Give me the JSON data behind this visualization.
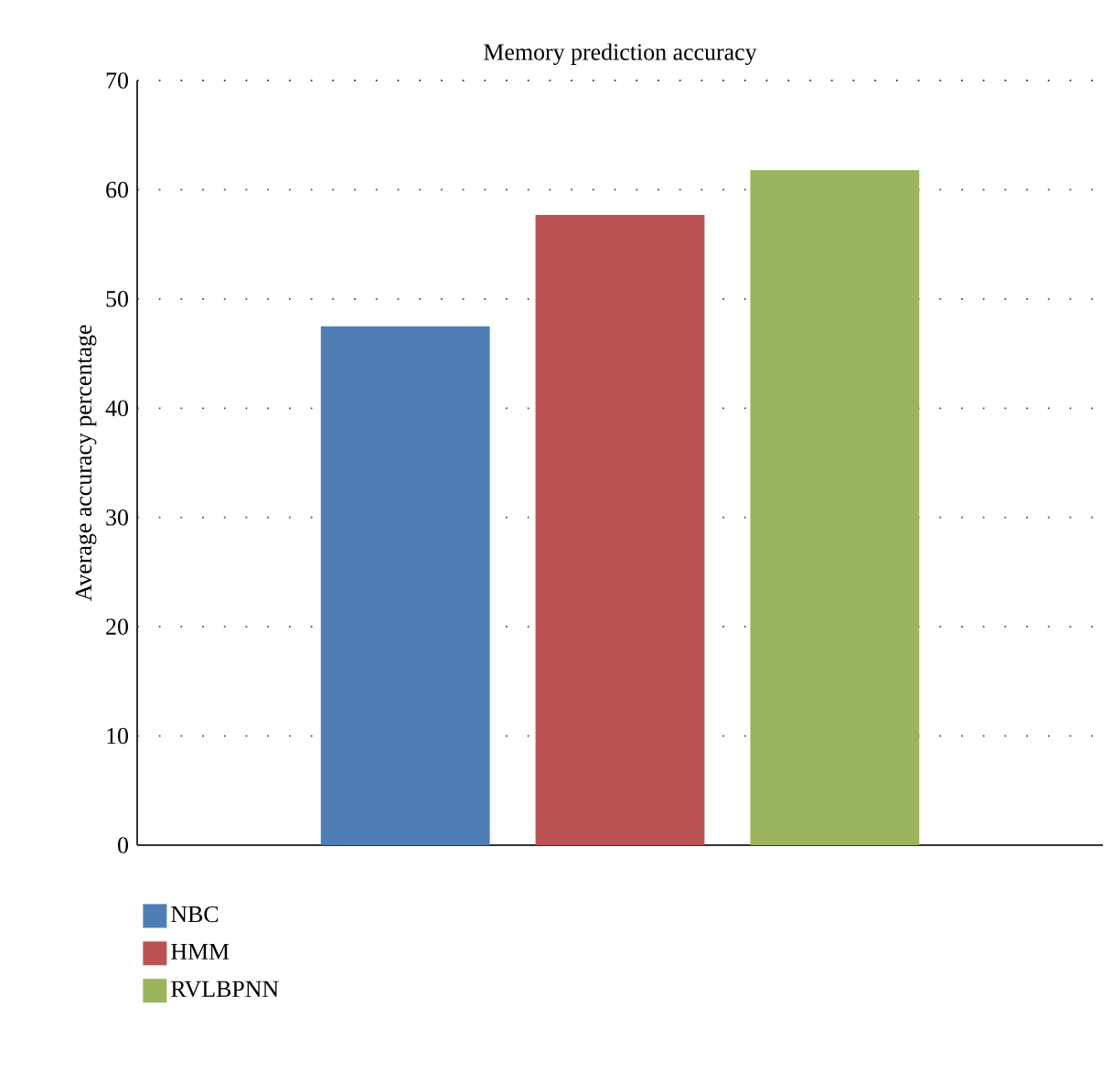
{
  "chart_data": {
    "type": "bar",
    "title": "Memory prediction accuracy",
    "ylabel": "Average accuracy percentage",
    "categories": [
      null
    ],
    "series": [
      {
        "name": "NBC",
        "color": "#4f7db5",
        "values": [
          47.5
        ]
      },
      {
        "name": "HMM",
        "color": "#bb5352",
        "values": [
          57.7
        ]
      },
      {
        "name": "RVLBPNN",
        "color": "#9bb55e",
        "values": [
          61.8
        ]
      }
    ],
    "ylim": [
      0,
      70
    ],
    "yticks": [
      0,
      10,
      20,
      30,
      40,
      50,
      60,
      70
    ],
    "grid": "y",
    "legend": "bottom left"
  }
}
